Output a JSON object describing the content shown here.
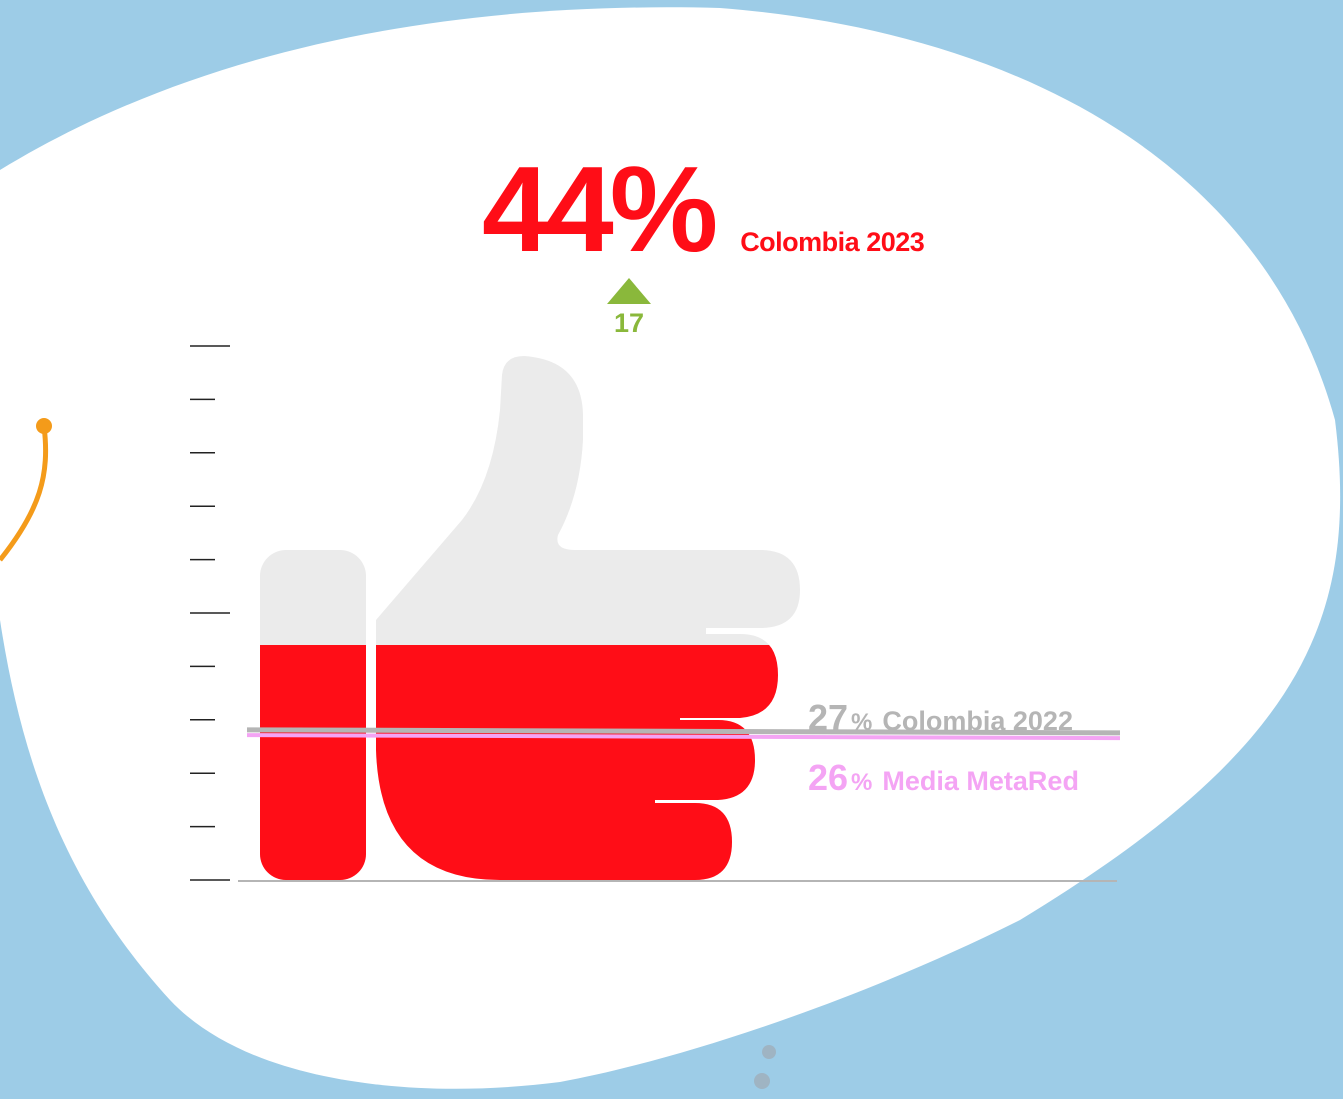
{
  "chart_data": {
    "type": "bar",
    "categories": [
      "Colombia 2023"
    ],
    "values": [
      44
    ],
    "value_unit": "%",
    "ylim": [
      0,
      100
    ],
    "grid": false,
    "headline": {
      "value": "44%",
      "label": "Colombia 2023"
    },
    "change": {
      "direction": "up",
      "value": "17"
    },
    "reference_lines": [
      {
        "value": 27,
        "value_text": "27",
        "unit": "%",
        "label": "Colombia 2022",
        "color": "#b5b5b5"
      },
      {
        "value": 26,
        "value_text": "26",
        "unit": "%",
        "label": "Media MetaRed",
        "color": "#f4a4f4"
      }
    ],
    "colors": {
      "fill": "#ff0d17",
      "empty": "#ebebeb",
      "increase": "#8ab83b",
      "background": "#9dcce7",
      "panel": "#ffffff",
      "accent_line": "#f49b1a",
      "dots": "#9fb4c3"
    },
    "icon": "thumbs-up-icon"
  }
}
